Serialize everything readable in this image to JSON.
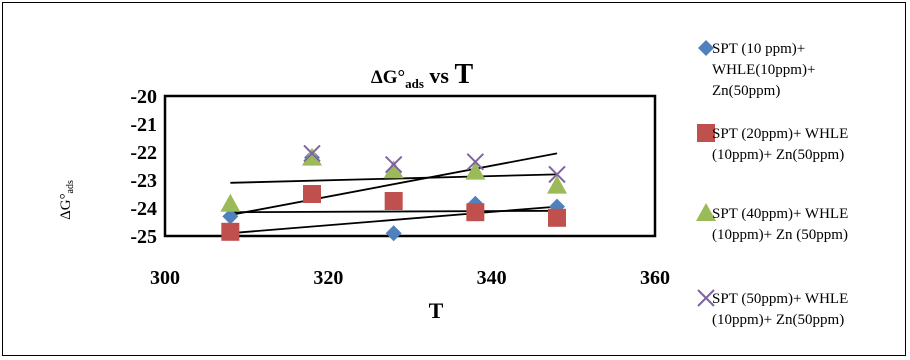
{
  "chart_data": {
    "type": "scatter",
    "title": {
      "main": "ΔG°",
      "sub": "ads",
      "tail": " vs ",
      "big": "T"
    },
    "xlabel": "T",
    "ylabel": {
      "main": "ΔG°",
      "sub": "ads"
    },
    "xlim": [
      300,
      360
    ],
    "ylim": [
      -25,
      -20
    ],
    "xticks": [
      "300",
      "320",
      "340",
      "360"
    ],
    "yticks": [
      "-20",
      "-21",
      "-22",
      "-23",
      "-24",
      "-25"
    ],
    "legend_position": "right",
    "series": [
      {
        "name": [
          "SPT (10 ppm)+",
          "WHLE(10ppm)+",
          "Zn(50ppm)"
        ],
        "marker": "diamond",
        "color": "#4F81BD",
        "x": [
          308,
          318,
          328,
          338,
          348
        ],
        "y": [
          -24.3,
          -22.2,
          -24.9,
          -23.85,
          -23.95
        ],
        "trend": [
          [
            308,
            -24.15
          ],
          [
            348,
            -24.1
          ]
        ]
      },
      {
        "name": [
          "SPT (20ppm)+ WHLE",
          "(10ppm)+ Zn(50ppm)"
        ],
        "marker": "square",
        "color": "#C0504D",
        "x": [
          308,
          318,
          328,
          338,
          348
        ],
        "y": [
          -24.85,
          -23.5,
          -23.75,
          -24.15,
          -24.35
        ],
        "trend": [
          [
            308,
            -24.9
          ],
          [
            348,
            -23.95
          ]
        ]
      },
      {
        "name": [
          "SPT (40ppm)+ WHLE",
          "(10ppm)+ Zn (50ppm)"
        ],
        "marker": "triangle",
        "color": "#9BBB59",
        "x": [
          308,
          318,
          328,
          338,
          348
        ],
        "y": [
          -23.85,
          -22.2,
          -22.65,
          -22.7,
          -23.2
        ],
        "trend": [
          [
            308,
            -24.25
          ],
          [
            348,
            -22.05
          ]
        ]
      },
      {
        "name": [
          "SPT (50ppm)+ WHLE",
          "(10ppm)+ Zn(50ppm)"
        ],
        "marker": "x",
        "color": "#8064A2",
        "x": [
          318,
          328,
          338,
          348
        ],
        "y": [
          -22.05,
          -22.45,
          -22.35,
          -22.8
        ],
        "trend": [
          [
            308,
            -23.1
          ],
          [
            348,
            -22.8
          ]
        ]
      }
    ]
  }
}
